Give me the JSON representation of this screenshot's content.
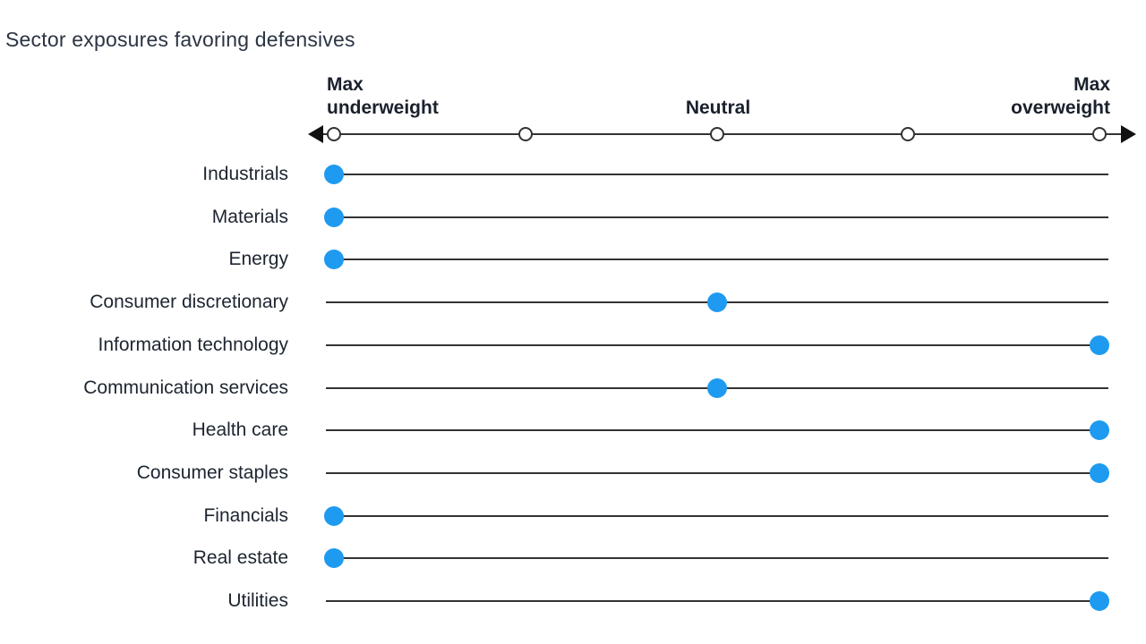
{
  "title": "Sector exposures favoring defensives",
  "axis": {
    "left_label_lines": [
      "Max",
      "underweight"
    ],
    "center_label": "Neutral",
    "right_label_lines": [
      "Max",
      "overweight"
    ]
  },
  "colors": {
    "dot_blue": "#1E9BF0",
    "line_dark": "#333333",
    "arrow_black": "#111111",
    "text_dark": "#1D2531",
    "title_color": "#2B3443"
  },
  "chart_data": {
    "type": "scatter",
    "subtype": "dot-plot",
    "title": "Sector exposures favoring defensives",
    "xlabel": "",
    "ylabel": "",
    "x_axis": {
      "min_label": "Max underweight",
      "mid_label": "Neutral",
      "max_label": "Max overweight",
      "range": [
        0,
        1
      ],
      "tick_values": [
        0,
        0.25,
        0.5,
        0.75,
        1
      ],
      "grid": false
    },
    "rows": [
      {
        "label": "Industrials",
        "value": 0,
        "position": "Max underweight"
      },
      {
        "label": "Materials",
        "value": 0,
        "position": "Max underweight"
      },
      {
        "label": "Energy",
        "value": 0,
        "position": "Max underweight"
      },
      {
        "label": "Consumer discretionary",
        "value": 0.5,
        "position": "Neutral"
      },
      {
        "label": "Information technology",
        "value": 1,
        "position": "Max overweight"
      },
      {
        "label": "Communication services",
        "value": 0.5,
        "position": "Neutral"
      },
      {
        "label": "Health care",
        "value": 1,
        "position": "Max overweight"
      },
      {
        "label": "Consumer staples",
        "value": 1,
        "position": "Max overweight"
      },
      {
        "label": "Financials",
        "value": 0,
        "position": "Max underweight"
      },
      {
        "label": "Real estate",
        "value": 0,
        "position": "Max underweight"
      },
      {
        "label": "Utilities",
        "value": 1,
        "position": "Max overweight"
      }
    ]
  }
}
